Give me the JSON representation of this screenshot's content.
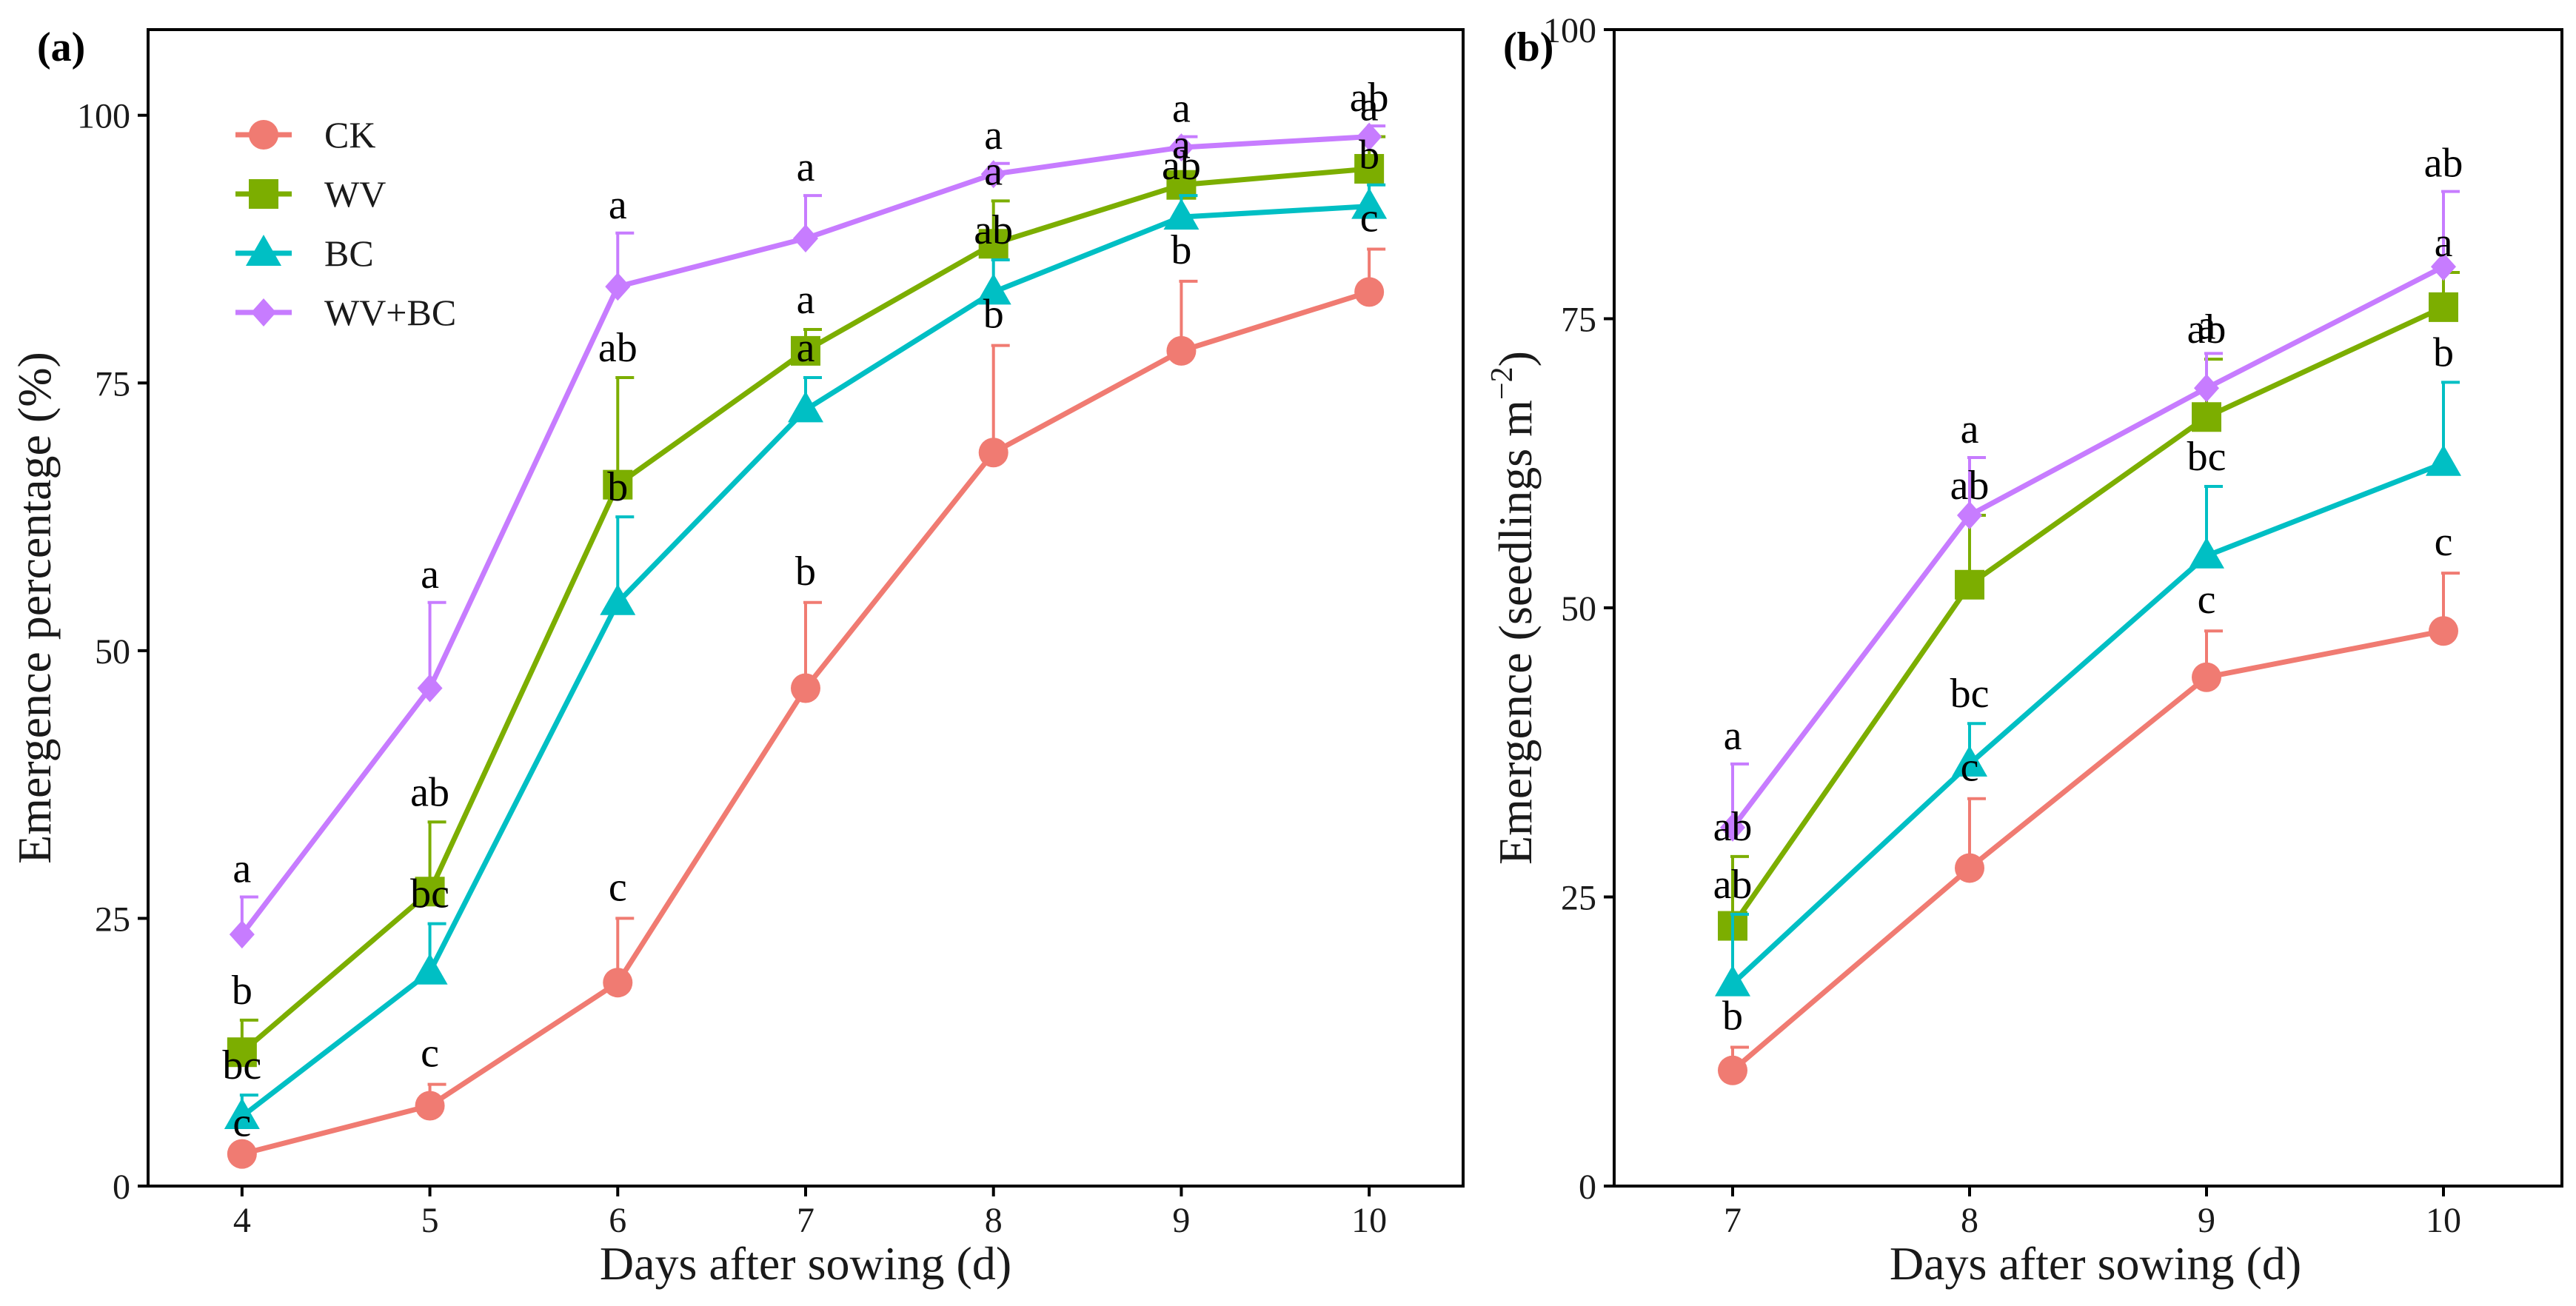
{
  "colors": {
    "CK": "#f07b72",
    "WV": "#7cae00",
    "BC": "#00bfc4",
    "WV+BC": "#c77cff"
  },
  "chart_data": [
    {
      "type": "line",
      "panel_label": "(a)",
      "xlabel": "Days after sowing (d)",
      "ylabel": "Emergence percentage (%)",
      "xlim": [
        3.5,
        10.5
      ],
      "ylim": [
        0,
        108
      ],
      "x": [
        4,
        5,
        6,
        7,
        8,
        9,
        10
      ],
      "x_tick_labels": [
        "4",
        "5",
        "6",
        "7",
        "8",
        "9",
        "10"
      ],
      "y_ticks": [
        0,
        25,
        50,
        75,
        100
      ],
      "y_tick_labels": [
        "0",
        "25",
        "50",
        "75",
        "100"
      ],
      "legend": [
        "CK",
        "WV",
        "BC",
        "WV+BC"
      ],
      "legend_position": "top-left",
      "series": [
        {
          "name": "CK",
          "marker": "circle",
          "values": [
            3,
            7.5,
            19,
            46.5,
            68.5,
            78,
            83.5
          ],
          "errors": [
            0,
            2,
            6,
            8,
            10,
            6.5,
            4
          ],
          "letters": [
            "c",
            "c",
            "c",
            "b",
            "b",
            "b",
            "c"
          ]
        },
        {
          "name": "WV",
          "marker": "square",
          "values": [
            12.5,
            27.5,
            65.5,
            78,
            88,
            93.5,
            95
          ],
          "errors": [
            3,
            6.5,
            10,
            2,
            4,
            1,
            3
          ],
          "letters": [
            "b",
            "ab",
            "ab",
            "a",
            "a",
            "a",
            "a"
          ]
        },
        {
          "name": "BC",
          "marker": "triangle",
          "values": [
            6.5,
            20,
            54.5,
            72.5,
            83.5,
            90.5,
            91.5
          ],
          "errors": [
            2,
            4.5,
            8,
            3,
            3,
            2,
            2
          ],
          "letters": [
            "bc",
            "bc",
            "b",
            "a",
            "ab",
            "ab",
            "b"
          ]
        },
        {
          "name": "WV+BC",
          "marker": "diamond",
          "values": [
            23.5,
            46.5,
            84,
            88.5,
            94.5,
            97,
            98
          ],
          "errors": [
            3.5,
            8,
            5,
            4,
            1,
            1,
            1
          ],
          "letters": [
            "a",
            "a",
            "a",
            "a",
            "a",
            "a",
            "ab"
          ]
        }
      ]
    },
    {
      "type": "line",
      "panel_label": "(b)",
      "xlabel": "Days after sowing (d)",
      "ylabel_main": "Emergence (seedlings m",
      "ylabel_sup": "−2",
      "ylabel_end": ")",
      "xlim": [
        6.5,
        10.5
      ],
      "ylim": [
        0,
        100
      ],
      "x": [
        7,
        8,
        9,
        10
      ],
      "x_tick_labels": [
        "7",
        "8",
        "9",
        "10"
      ],
      "y_ticks": [
        0,
        25,
        50,
        75,
        100
      ],
      "y_tick_labels": [
        "0",
        "25",
        "50",
        "75",
        "100"
      ],
      "series": [
        {
          "name": "CK",
          "marker": "circle",
          "values": [
            10,
            27.5,
            44,
            48
          ],
          "errors": [
            2,
            6,
            4,
            5
          ],
          "letters": [
            "b",
            "c",
            "c",
            "c"
          ]
        },
        {
          "name": "WV",
          "marker": "square",
          "values": [
            22.5,
            52,
            66.5,
            76
          ],
          "errors": [
            6,
            6,
            5,
            3
          ],
          "letters": [
            "ab",
            "ab",
            "ab",
            "a"
          ]
        },
        {
          "name": "BC",
          "marker": "triangle",
          "values": [
            17.5,
            36.5,
            54.5,
            62.5
          ],
          "errors": [
            6,
            3.5,
            6,
            7
          ],
          "letters": [
            "ab",
            "bc",
            "bc",
            "b"
          ]
        },
        {
          "name": "WV+BC",
          "marker": "diamond",
          "values": [
            31,
            58,
            69,
            79.5
          ],
          "errors": [
            5.5,
            5,
            3,
            6.5
          ],
          "letters": [
            "a",
            "a",
            "a",
            "ab"
          ]
        }
      ]
    }
  ]
}
